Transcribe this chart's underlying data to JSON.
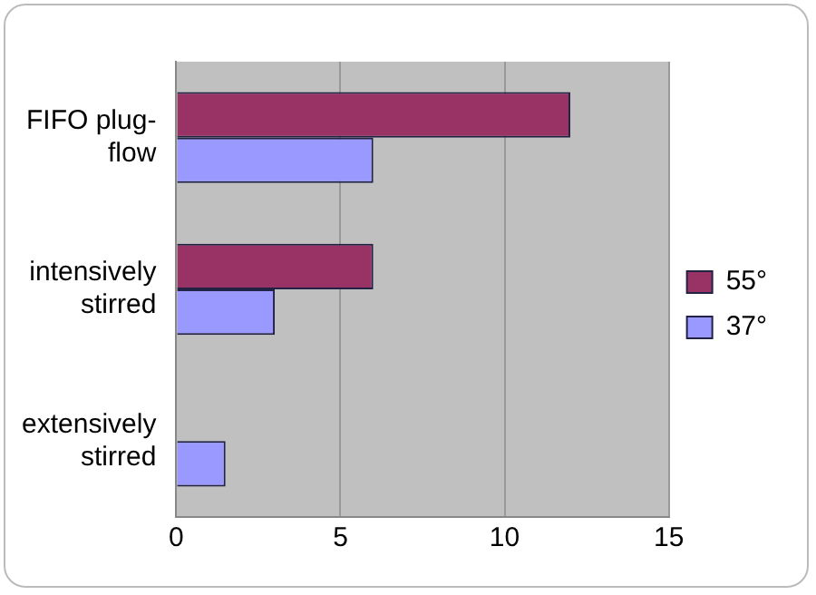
{
  "chart_data": {
    "type": "bar",
    "orientation": "horizontal",
    "categories": [
      "FIFO plug-flow",
      "intensively stirred",
      "extensively stirred"
    ],
    "series": [
      {
        "name": "55°",
        "color": "#993366",
        "values": [
          12,
          6,
          0
        ]
      },
      {
        "name": "37°",
        "color": "#9999ff",
        "values": [
          6,
          3,
          1.5
        ]
      }
    ],
    "xlim": [
      0,
      15
    ],
    "xticks": [
      0,
      5,
      10,
      15
    ],
    "grid": "x",
    "legend": "right"
  }
}
